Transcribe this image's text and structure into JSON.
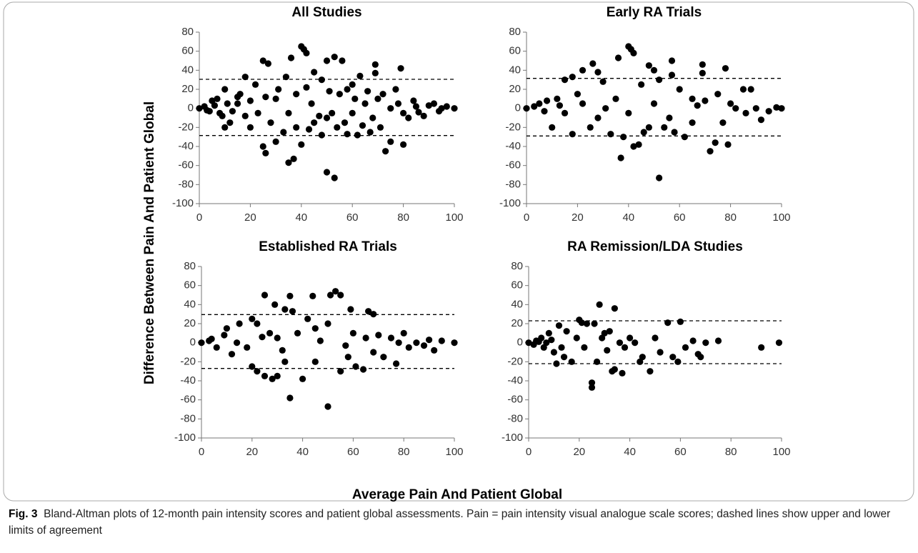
{
  "figure": {
    "y_label": "Difference Between Pain And Patient Global",
    "x_label": "Average Pain And Patient Global",
    "caption_label": "Fig. 3",
    "caption": "Bland-Altman plots of 12-month pain intensity scores and patient global assessments. Pain = pain intensity visual analogue scale scores; dashed lines show upper and lower limits of agreement"
  },
  "chart_data": [
    {
      "type": "scatter",
      "title": "All Studies",
      "color": "#000000",
      "xlim": [
        0,
        100
      ],
      "ylim": [
        -100,
        80
      ],
      "xticks": [
        0,
        20,
        40,
        60,
        80,
        100
      ],
      "yticks": [
        -100,
        -80,
        -60,
        -40,
        -20,
        0,
        20,
        40,
        60,
        80
      ],
      "reference_lines": [
        30.5,
        -28.5
      ],
      "x": [
        40,
        41,
        42,
        53,
        36,
        25,
        50,
        56,
        27,
        69,
        79,
        69,
        45,
        34,
        18,
        63,
        10,
        5,
        15,
        22,
        30,
        35,
        38,
        45,
        50,
        60,
        65,
        70,
        75,
        80,
        85,
        90,
        95,
        100,
        0,
        2,
        3,
        8,
        12,
        20,
        26,
        25,
        35,
        37,
        40,
        50,
        53,
        73,
        80,
        75,
        58,
        62,
        48,
        30,
        10,
        55,
        58,
        42,
        48,
        60,
        66,
        72,
        78,
        82,
        88,
        92,
        97,
        28,
        33,
        43,
        52,
        57,
        64,
        68,
        15,
        18,
        6,
        4,
        7,
        9,
        11,
        13,
        16,
        20,
        23,
        26,
        31,
        38,
        44,
        47,
        51,
        54,
        61,
        67,
        71,
        77,
        84,
        86,
        94
      ],
      "y": [
        65,
        62,
        58,
        54,
        53,
        50,
        50,
        50,
        47,
        46,
        42,
        37,
        38,
        33,
        33,
        34,
        20,
        8,
        12,
        25,
        10,
        -5,
        -20,
        -15,
        -10,
        -5,
        5,
        10,
        0,
        -5,
        2,
        3,
        0,
        0,
        0,
        2,
        -2,
        -5,
        -15,
        -20,
        -47,
        -40,
        -57,
        -53,
        -38,
        -67,
        -73,
        -45,
        -38,
        -35,
        -27,
        -28,
        -28,
        -35,
        -20,
        15,
        20,
        22,
        30,
        25,
        18,
        15,
        5,
        -10,
        -8,
        5,
        2,
        -15,
        -25,
        -22,
        -5,
        -15,
        -18,
        -10,
        5,
        -8,
        3,
        -3,
        10,
        -8,
        5,
        -3,
        15,
        8,
        -5,
        12,
        20,
        15,
        5,
        -8,
        18,
        -20,
        10,
        -25,
        -20,
        20,
        8,
        -4,
        -3
      ]
    },
    {
      "type": "scatter",
      "title": "Early RA Trials",
      "color": "#000000",
      "xlim": [
        0,
        100
      ],
      "ylim": [
        -100,
        80
      ],
      "xticks": [
        0,
        20,
        40,
        60,
        80,
        100
      ],
      "yticks": [
        -100,
        -80,
        -60,
        -40,
        -20,
        0,
        20,
        40,
        60,
        80
      ],
      "reference_lines": [
        31.5,
        -29
      ],
      "x": [
        40,
        41,
        42,
        36,
        57,
        26,
        69,
        78,
        57,
        69,
        48,
        50,
        28,
        22,
        18,
        15,
        30,
        45,
        52,
        60,
        65,
        70,
        75,
        80,
        85,
        88,
        90,
        95,
        98,
        100,
        0,
        3,
        5,
        7,
        10,
        12,
        15,
        18,
        20,
        25,
        28,
        33,
        37,
        38,
        42,
        44,
        46,
        48,
        52,
        54,
        58,
        62,
        65,
        72,
        74,
        79,
        77,
        82,
        86,
        92,
        8,
        13,
        22,
        31,
        35,
        40,
        50,
        56,
        67
      ],
      "y": [
        65,
        62,
        58,
        53,
        50,
        47,
        46,
        42,
        35,
        37,
        45,
        40,
        38,
        40,
        33,
        30,
        28,
        25,
        30,
        20,
        10,
        8,
        15,
        5,
        20,
        20,
        0,
        -3,
        1,
        0,
        0,
        2,
        5,
        -3,
        -20,
        10,
        -5,
        -27,
        15,
        -20,
        -10,
        -27,
        -52,
        -30,
        -40,
        -38,
        -25,
        -20,
        -73,
        -20,
        -25,
        -30,
        -15,
        -45,
        -36,
        -38,
        -15,
        0,
        -5,
        -12,
        8,
        3,
        5,
        0,
        10,
        -5,
        5,
        -10,
        3
      ]
    },
    {
      "type": "scatter",
      "title": "Established RA Trials",
      "color": "#000000",
      "xlim": [
        0,
        100
      ],
      "ylim": [
        -100,
        80
      ],
      "xticks": [
        0,
        20,
        40,
        60,
        80,
        100
      ],
      "yticks": [
        -100,
        -80,
        -60,
        -40,
        -20,
        0,
        20,
        40,
        60,
        80
      ],
      "reference_lines": [
        29.5,
        -27
      ],
      "x": [
        25,
        35,
        44,
        51,
        53,
        55,
        29,
        42,
        33,
        36,
        59,
        66,
        68,
        10,
        15,
        20,
        22,
        27,
        30,
        38,
        45,
        50,
        60,
        65,
        70,
        75,
        80,
        85,
        90,
        95,
        100,
        0,
        3,
        6,
        9,
        12,
        18,
        20,
        22,
        25,
        28,
        30,
        33,
        35,
        40,
        45,
        50,
        55,
        58,
        61,
        64,
        68,
        72,
        77,
        82,
        88,
        92,
        4,
        14,
        24,
        32,
        47,
        57,
        78
      ],
      "y": [
        50,
        49,
        49,
        50,
        54,
        50,
        40,
        25,
        35,
        33,
        35,
        33,
        30,
        15,
        20,
        25,
        20,
        10,
        5,
        10,
        15,
        20,
        10,
        5,
        8,
        5,
        10,
        0,
        3,
        2,
        0,
        0,
        2,
        -5,
        8,
        -12,
        -5,
        -25,
        -30,
        -35,
        -38,
        -35,
        -20,
        -58,
        -38,
        -20,
        -67,
        -30,
        -15,
        -25,
        -28,
        -10,
        -15,
        -22,
        -5,
        -3,
        -8,
        4,
        0,
        6,
        -8,
        2,
        -3,
        0
      ]
    },
    {
      "type": "scatter",
      "title": "RA Remission/LDA Studies",
      "color": "#000000",
      "xlim": [
        0,
        100
      ],
      "ylim": [
        -100,
        80
      ],
      "xticks": [
        0,
        20,
        40,
        60,
        80,
        100
      ],
      "yticks": [
        -100,
        -80,
        -60,
        -40,
        -20,
        0,
        20,
        40,
        60,
        80
      ],
      "reference_lines": [
        23,
        -22
      ],
      "x": [
        28,
        34,
        20,
        21,
        23,
        26,
        55,
        60,
        30,
        32,
        15,
        12,
        8,
        5,
        3,
        0,
        2,
        6,
        10,
        11,
        14,
        17,
        19,
        22,
        25,
        25,
        27,
        33,
        34,
        37,
        38,
        40,
        42,
        45,
        48,
        50,
        52,
        57,
        59,
        62,
        65,
        67,
        68,
        70,
        75,
        92,
        99,
        36,
        44,
        29,
        31,
        9,
        7,
        4,
        13
      ],
      "y": [
        40,
        36,
        24,
        21,
        20,
        20,
        21,
        22,
        10,
        12,
        12,
        18,
        10,
        5,
        2,
        0,
        -2,
        -5,
        -10,
        -22,
        -15,
        -20,
        5,
        -5,
        -42,
        -47,
        -20,
        -30,
        -28,
        -32,
        -5,
        5,
        0,
        -15,
        -30,
        5,
        -10,
        -15,
        -20,
        -5,
        2,
        -12,
        -15,
        0,
        2,
        -5,
        0,
        0,
        -20,
        5,
        -8,
        3,
        0,
        1,
        -5
      ]
    }
  ]
}
